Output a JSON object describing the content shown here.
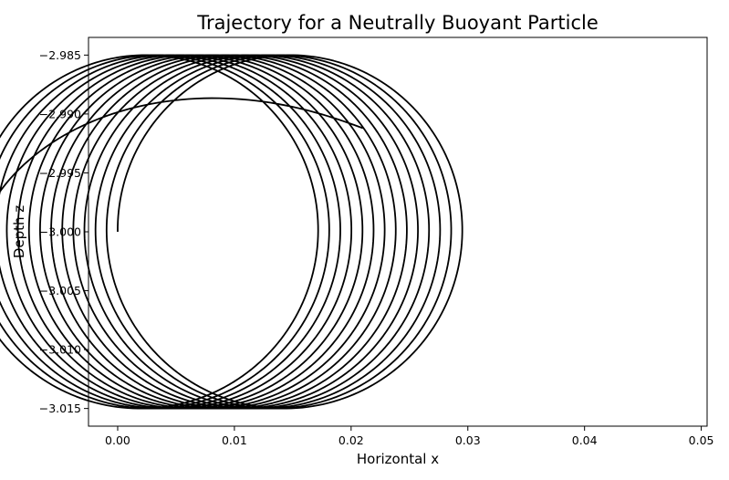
{
  "chart_data": {
    "type": "line",
    "title": "Trajectory for a Neutrally Buoyant Particle",
    "xlabel": "Horizontal x",
    "ylabel": "Depth z",
    "xlim": [
      -0.0025,
      0.0505
    ],
    "ylim": [
      -3.0165,
      -2.9835
    ],
    "xticks": [
      "0.00",
      "0.01",
      "0.02",
      "0.03",
      "0.04",
      "0.05"
    ],
    "yticks": [
      "−2.985",
      "−2.990",
      "−2.995",
      "−3.000",
      "−3.005",
      "−3.010",
      "−3.015"
    ],
    "grid": false,
    "series": [
      {
        "color": "#000000",
        "trajectory": {
          "orbit_radius": 0.015,
          "center_x_start": 0.015,
          "center_z": -3.0,
          "drift_per_orbit": -0.00095,
          "start_phase_deg": 180,
          "end_x": 0.021,
          "end_z": -2.9912,
          "orbits": 14.3
        }
      }
    ]
  }
}
